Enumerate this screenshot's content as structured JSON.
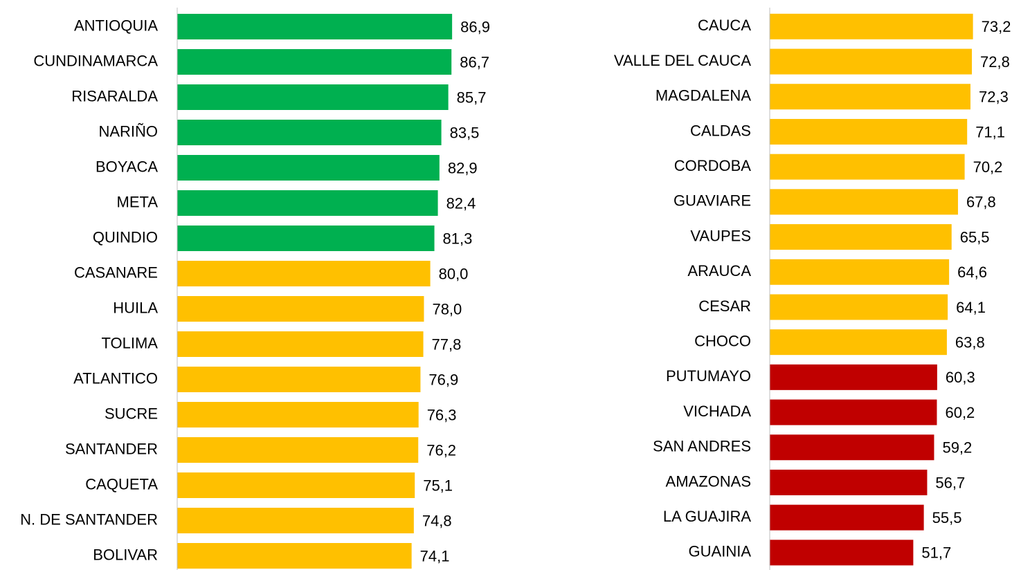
{
  "chart_data": [
    {
      "type": "barh",
      "categories": [
        "ANTIOQUIA",
        "CUNDINAMARCA",
        "RISARALDA",
        "NARIÑO",
        "BOYACA",
        "META",
        "QUINDIO",
        "CASANARE",
        "HUILA",
        "TOLIMA",
        "ATLANTICO",
        "SUCRE",
        "SANTANDER",
        "CAQUETA",
        "N. DE SANTANDER",
        "BOLIVAR"
      ],
      "values": [
        86.9,
        86.7,
        85.7,
        83.5,
        82.9,
        82.4,
        81.3,
        80.0,
        78.0,
        77.8,
        76.9,
        76.3,
        76.2,
        75.1,
        74.8,
        74.1
      ],
      "value_labels": [
        "86,9",
        "86,7",
        "85,7",
        "83,5",
        "82,9",
        "82,4",
        "81,3",
        "80,0",
        "78,0",
        "77,8",
        "76,9",
        "76,3",
        "76,2",
        "75,1",
        "74,8",
        "74,1"
      ],
      "colors": [
        "#00b050",
        "#00b050",
        "#00b050",
        "#00b050",
        "#00b050",
        "#00b050",
        "#00b050",
        "#ffc000",
        "#ffc000",
        "#ffc000",
        "#ffc000",
        "#ffc000",
        "#ffc000",
        "#ffc000",
        "#ffc000",
        "#ffc000"
      ],
      "xlim": [
        0,
        100
      ]
    },
    {
      "type": "barh",
      "categories": [
        "CAUCA",
        "VALLE DEL CAUCA",
        "MAGDALENA",
        "CALDAS",
        "CORDOBA",
        "GUAVIARE",
        "VAUPES",
        "ARAUCA",
        "CESAR",
        "CHOCO",
        "PUTUMAYO",
        "VICHADA",
        "SAN ANDRES",
        "AMAZONAS",
        "LA GUAJIRA",
        "GUAINIA"
      ],
      "values": [
        73.2,
        72.8,
        72.3,
        71.1,
        70.2,
        67.8,
        65.5,
        64.6,
        64.1,
        63.8,
        60.3,
        60.2,
        59.2,
        56.7,
        55.5,
        51.7
      ],
      "value_labels": [
        "73,2",
        "72,8",
        "72,3",
        "71,1",
        "70,2",
        "67,8",
        "65,5",
        "64,6",
        "64,1",
        "63,8",
        "60,3",
        "60,2",
        "59,2",
        "56,7",
        "55,5",
        "51,7"
      ],
      "colors": [
        "#ffc000",
        "#ffc000",
        "#ffc000",
        "#ffc000",
        "#ffc000",
        "#ffc000",
        "#ffc000",
        "#ffc000",
        "#ffc000",
        "#ffc000",
        "#c00000",
        "#c00000",
        "#c00000",
        "#c00000",
        "#c00000",
        "#c00000"
      ],
      "xlim": [
        0,
        90
      ]
    }
  ]
}
